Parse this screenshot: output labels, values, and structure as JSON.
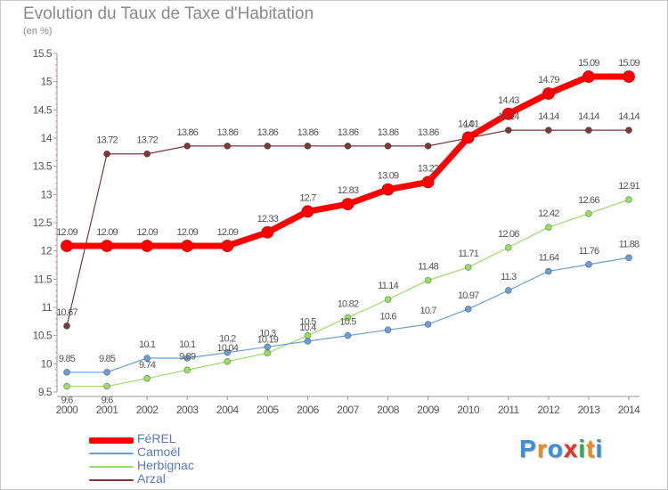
{
  "title": "Evolution du Taux de Taxe d'Habitation",
  "subtitle": "(en %)",
  "logo": {
    "text": "Proxiti",
    "letters": [
      "P",
      "r",
      "o",
      "x",
      "i",
      "t",
      "i"
    ],
    "colors": [
      "#3a8fd8",
      "#e88c23",
      "#3a8fd8",
      "#e0322a",
      "#2db04a",
      "#e88c23",
      "#3a8fd8"
    ]
  },
  "chart_data": {
    "type": "line",
    "x": [
      2000,
      2001,
      2002,
      2003,
      2004,
      2005,
      2006,
      2007,
      2008,
      2009,
      2010,
      2011,
      2012,
      2013,
      2014
    ],
    "ylim": [
      9.5,
      15.5
    ],
    "yticks": [
      "9.5",
      "10",
      "10.5",
      "11",
      "11.5",
      "12",
      "12.5",
      "13",
      "13.5",
      "14",
      "14.5",
      "15",
      "15.5"
    ],
    "xlabel": "",
    "ylabel": "",
    "grid": false,
    "legend_position": "bottom-left",
    "series": [
      {
        "name": "FéREL",
        "color": "#ff0000",
        "values": [
          12.09,
          12.09,
          12.09,
          12.09,
          12.09,
          12.33,
          12.7,
          12.83,
          13.09,
          13.22,
          14.01,
          14.43,
          14.79,
          15.09,
          15.09
        ],
        "labels": [
          "12.09",
          "12.09",
          "12.09",
          "12.09",
          "12.09",
          "12.33",
          "12.7",
          "12.83",
          "13.09",
          "13.22",
          "14.01",
          "14.43",
          "14.79",
          "15.09",
          "15.09"
        ]
      },
      {
        "name": "Camoël",
        "color": "#6b9fd4",
        "values": [
          9.85,
          9.85,
          10.1,
          10.1,
          10.2,
          10.3,
          10.4,
          10.5,
          10.6,
          10.7,
          10.97,
          11.3,
          11.64,
          11.76,
          11.88
        ],
        "labels": [
          "9.85",
          "9.85",
          "10.1",
          "10.1",
          "10.2",
          "10.3",
          "10.4",
          "10.5",
          "10.6",
          "10.7",
          "10.97",
          "11.3",
          "11.64",
          "11.76",
          "11.88"
        ]
      },
      {
        "name": "Herbignac",
        "color": "#99dd66",
        "values": [
          9.6,
          9.6,
          9.74,
          9.89,
          10.04,
          10.19,
          10.5,
          10.82,
          11.14,
          11.48,
          11.71,
          12.06,
          12.42,
          12.66,
          12.91
        ],
        "labels": [
          "9.6",
          "9.6",
          "9.74",
          "9.89",
          "10.04",
          "10.19",
          "10.5",
          "10.82",
          "11.14",
          "11.48",
          "11.71",
          "12.06",
          "12.42",
          "12.66",
          "12.91"
        ]
      },
      {
        "name": "Arzal",
        "color": "#7a3a3a",
        "values": [
          10.67,
          13.72,
          13.72,
          13.86,
          13.86,
          13.86,
          13.86,
          13.86,
          13.86,
          13.86,
          14,
          14.14,
          14.14,
          14.14,
          14.14
        ],
        "labels": [
          "10.67",
          "13.72",
          "13.72",
          "13.86",
          "13.86",
          "13.86",
          "13.86",
          "13.86",
          "13.86",
          "13.86",
          "14",
          "14.14",
          "14.14",
          "14.14",
          "14.14"
        ]
      }
    ]
  }
}
